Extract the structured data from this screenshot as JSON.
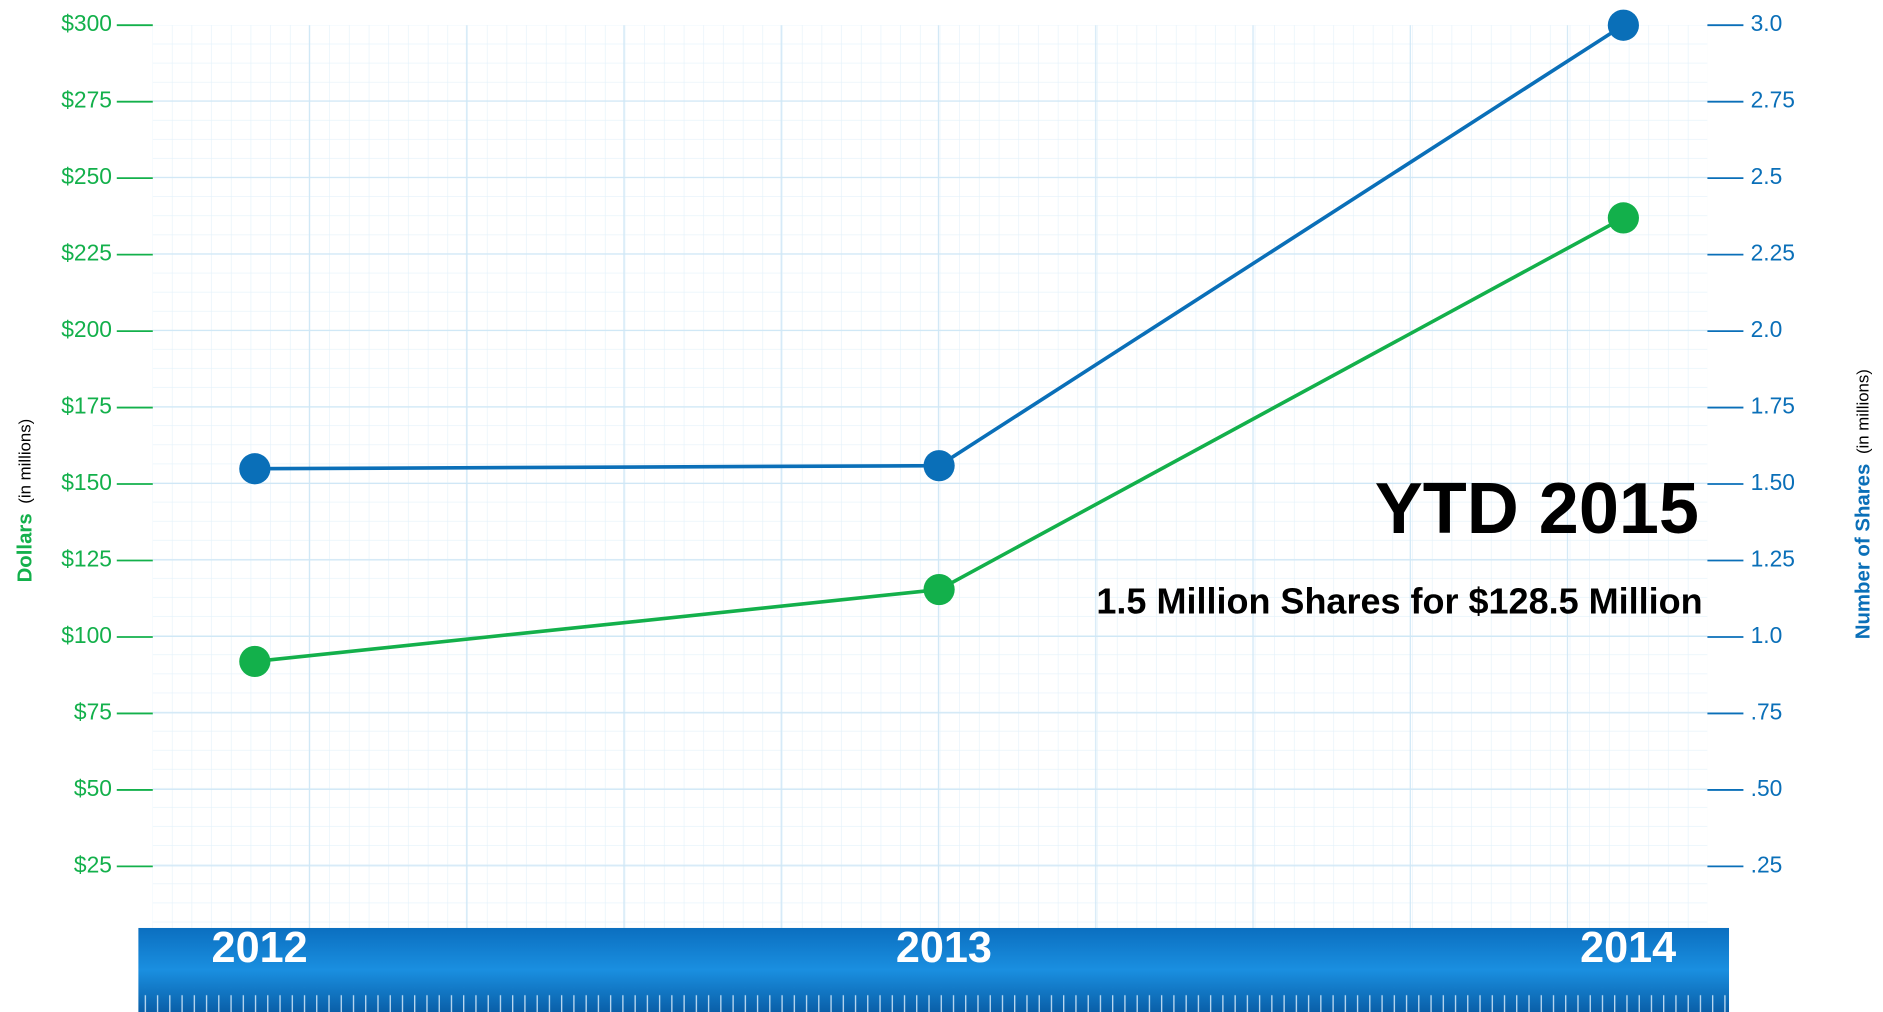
{
  "chart_data": {
    "type": "line",
    "categories": [
      "2012",
      "2013",
      "2014"
    ],
    "series": [
      {
        "name": "Dollars",
        "color": "#13b04b",
        "values": [
          92,
          115.5,
          237
        ]
      },
      {
        "name": "Number of Shares",
        "color": "#0a6fb8",
        "axis": "y2",
        "values": [
          1.55,
          1.56,
          3.0
        ]
      }
    ],
    "y_label": {
      "text": "Dollars",
      "unit": "(in millions)"
    },
    "y2_label": {
      "text": "Number of Shares",
      "unit": "(in millions)"
    },
    "ylim": [
      0,
      300
    ],
    "yticks": [
      {
        "value": 25,
        "label": "$25"
      },
      {
        "value": 50,
        "label": "$50"
      },
      {
        "value": 75,
        "label": "$75"
      },
      {
        "value": 100,
        "label": "$100"
      },
      {
        "value": 125,
        "label": "$125"
      },
      {
        "value": 150,
        "label": "$150"
      },
      {
        "value": 175,
        "label": "$175"
      },
      {
        "value": 200,
        "label": "$200"
      },
      {
        "value": 225,
        "label": "$225"
      },
      {
        "value": 250,
        "label": "$250"
      },
      {
        "value": 275,
        "label": "$275"
      },
      {
        "value": 300,
        "label": "$300"
      }
    ],
    "y2lim": [
      0,
      3.0
    ],
    "y2ticks": [
      {
        "value": 0.25,
        "label": ".25"
      },
      {
        "value": 0.5,
        "label": ".50"
      },
      {
        "value": 0.75,
        "label": ".75"
      },
      {
        "value": 1.0,
        "label": "1.0"
      },
      1.25,
      {
        "value": 1.5,
        "label": "1.50"
      },
      1.75,
      {
        "value": 2.0,
        "label": "2.0"
      },
      2.25,
      {
        "value": 2.5,
        "label": "2.5"
      },
      2.75,
      {
        "value": 3.0,
        "label": "3.0"
      }
    ],
    "annotations": [
      "YTD 2015",
      "1.5 Million Shares for $128.5 Million"
    ]
  }
}
